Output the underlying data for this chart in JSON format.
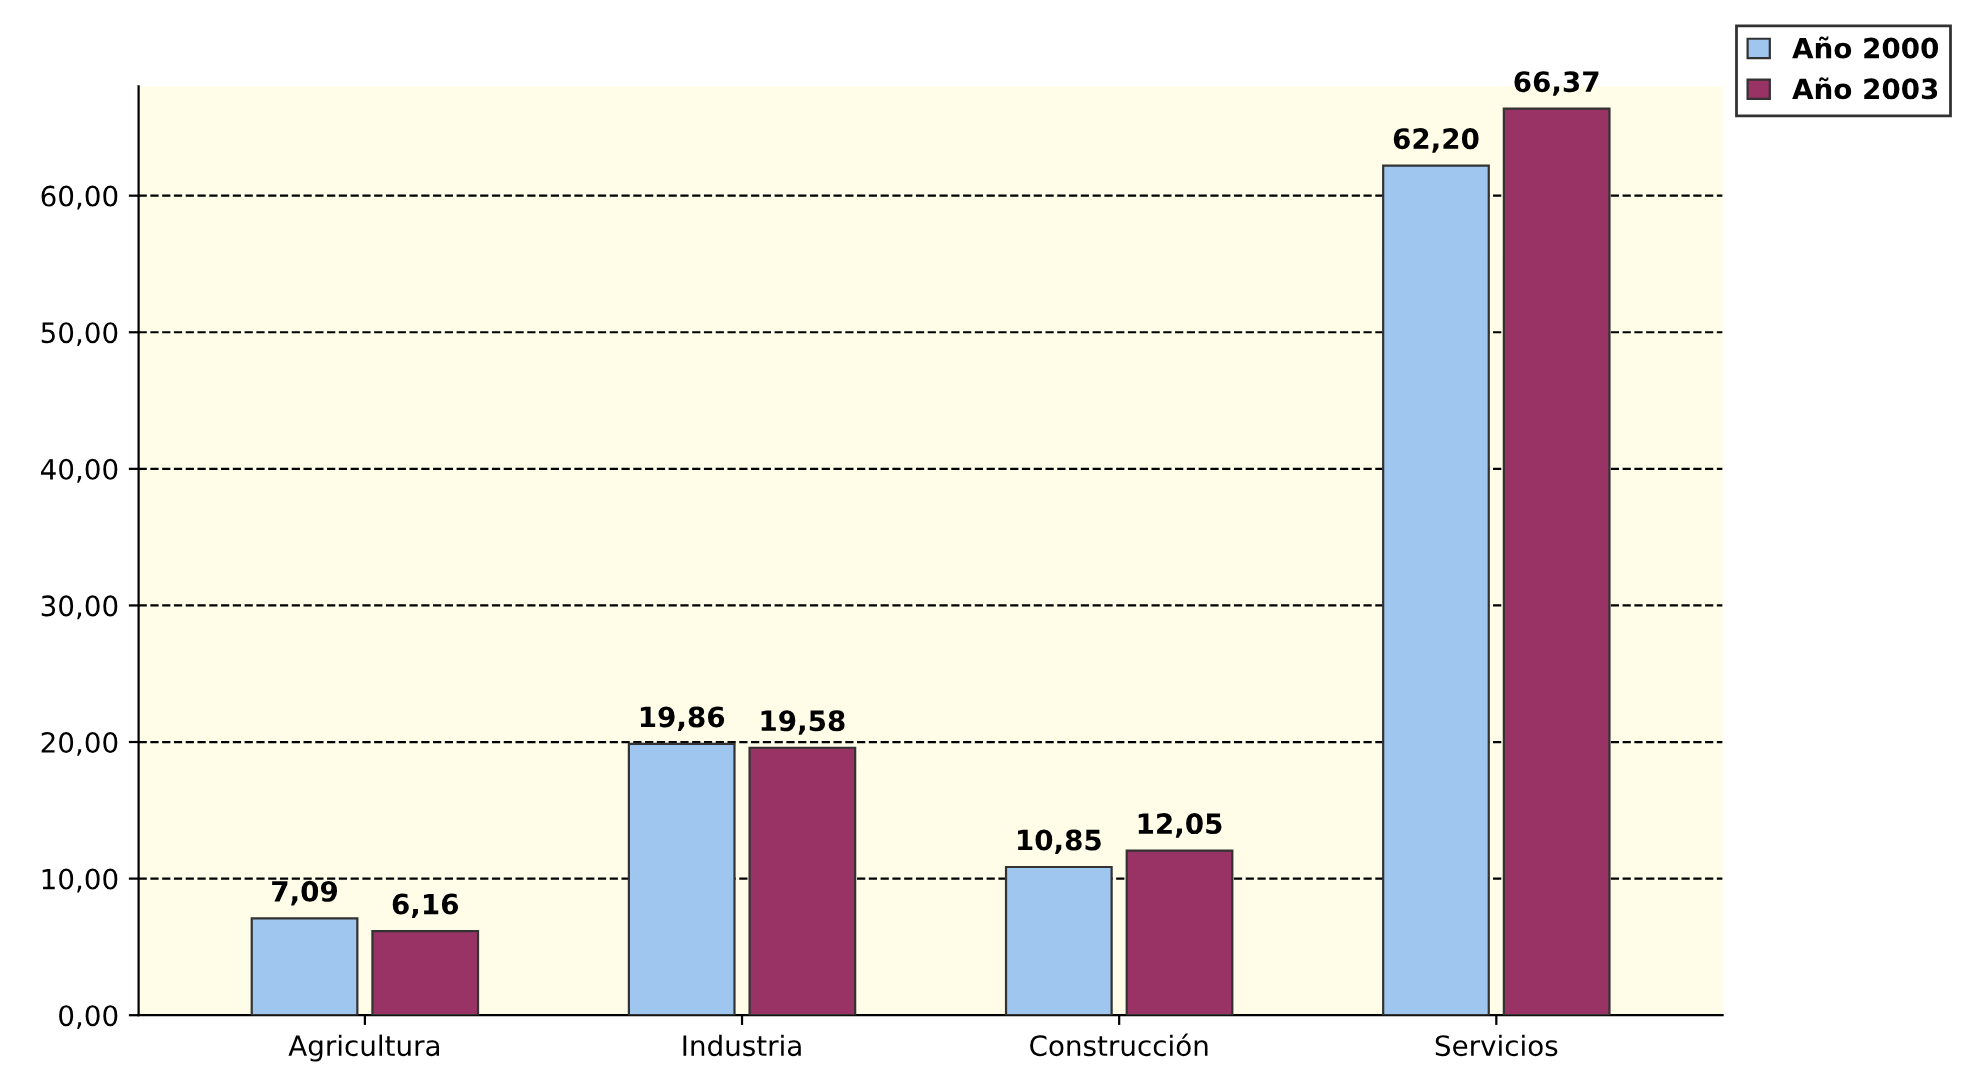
{
  "chart_data": {
    "type": "bar",
    "categories": [
      "Agricultura",
      "Industria",
      "Construcción",
      "Servicios"
    ],
    "series": [
      {
        "name": "Año 2000",
        "color": "#9ec6ee",
        "values": [
          7.09,
          19.86,
          10.85,
          62.2
        ],
        "value_labels": [
          "7,09",
          "19,86",
          "10,85",
          "62,20"
        ]
      },
      {
        "name": "Año 2003",
        "color": "#993366",
        "values": [
          6.16,
          19.58,
          12.05,
          66.37
        ],
        "value_labels": [
          "6,16",
          "19,58",
          "12,05",
          "66,37"
        ]
      }
    ],
    "ylim": [
      0,
      68
    ],
    "yticks": [
      {
        "value": 0,
        "label": "0,00"
      },
      {
        "value": 10,
        "label": "10,00"
      },
      {
        "value": 20,
        "label": "20,00"
      },
      {
        "value": 30,
        "label": "30,00"
      },
      {
        "value": 40,
        "label": "40,00"
      },
      {
        "value": 50,
        "label": "50,00"
      },
      {
        "value": 60,
        "label": "60,00"
      }
    ],
    "grid": "y",
    "legend": "top right"
  }
}
